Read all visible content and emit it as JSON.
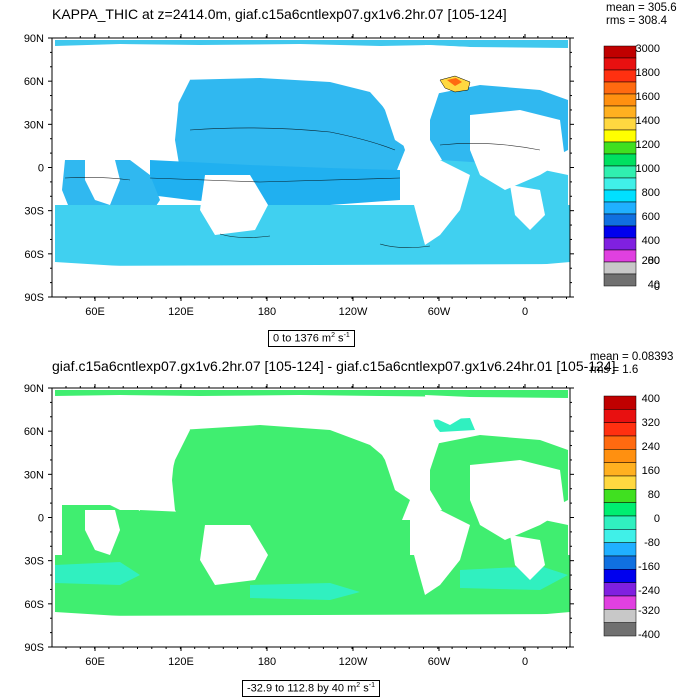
{
  "panels": [
    {
      "title": "KAPPA_THIC at z=2414.0m, giaf.c15a6cntlexp07.gx1v6.2hr.07 [105-124]",
      "stats": {
        "mean": "mean = 305.6",
        "rms": "rms = 308.4"
      },
      "range_label": {
        "text": "0 to 1376 m",
        "sup1": "2",
        "mid": " s",
        "sup2": "-1"
      },
      "colorbar": {
        "labels": [
          "3000",
          "1800",
          "1600",
          "1400",
          "1200",
          "1000",
          "800",
          "600",
          "400",
          "200",
          "80",
          "40",
          "0"
        ],
        "colors": [
          "#c00000",
          "#e81010",
          "#ff3010",
          "#ff6a10",
          "#ff9010",
          "#ffb020",
          "#ffd840",
          "#ffff00",
          "#40e020",
          "#00e060",
          "#30f0b0",
          "#40f0e8",
          "#00e0ff",
          "#20b0ff",
          "#1070e0",
          "#0000ee",
          "#8020e0",
          "#e040e0",
          "#c8c8c8",
          "#707070"
        ]
      }
    },
    {
      "title": "giaf.c15a6cntlexp07.gx1v6.2hr.07 [105-124] - giaf.c15a6cntlexp07.gx1v6.24hr.01 [105-124]",
      "stats": {
        "mean": "mean = 0.08393",
        "rms": "rms = 1.6"
      },
      "range_label": {
        "text": "-32.9 to 112.8 by 40 m",
        "sup1": "2",
        "mid": " s",
        "sup2": "-1"
      },
      "colorbar": {
        "labels": [
          "400",
          "320",
          "240",
          "160",
          "80",
          "0",
          "-80",
          "-160",
          "-240",
          "-320",
          "-400"
        ],
        "colors": [
          "#c00000",
          "#e81010",
          "#ff3010",
          "#ff6a10",
          "#ff9010",
          "#ffb020",
          "#ffd840",
          "#40e020",
          "#00ee70",
          "#30f0c0",
          "#40f0e8",
          "#20b0ff",
          "#1070e0",
          "#0000ee",
          "#8020e0",
          "#e040e0",
          "#c8c8c8",
          "#707070"
        ]
      }
    }
  ],
  "lat_labels": [
    "90N",
    "60N",
    "30N",
    "0",
    "30S",
    "60S",
    "90S"
  ],
  "lon_labels": [
    "60E",
    "120E",
    "180",
    "120W",
    "60W",
    "0"
  ]
}
